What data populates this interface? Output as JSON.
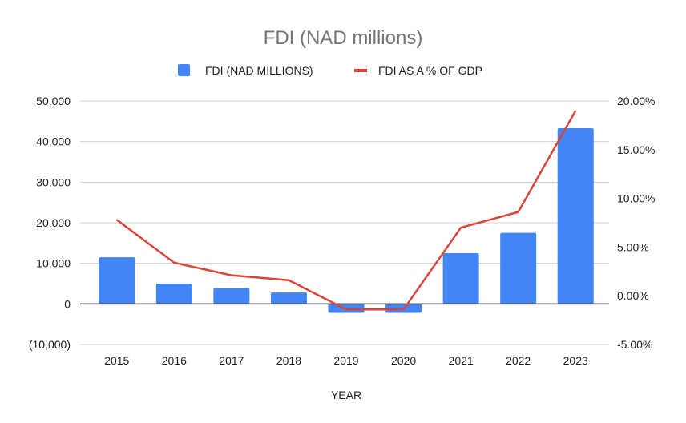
{
  "chart_data": {
    "type": "bar",
    "title": "FDI (NAD millions)",
    "xlabel": "YEAR",
    "categories": [
      "2015",
      "2016",
      "2017",
      "2018",
      "2019",
      "2020",
      "2021",
      "2022",
      "2023"
    ],
    "series": [
      {
        "name": "FDI (NAD MILLIONS)",
        "type": "bar",
        "axis": "left",
        "color": "#4285f4",
        "values": [
          11500,
          5000,
          3900,
          2800,
          -2200,
          -2200,
          12500,
          17500,
          43300
        ]
      },
      {
        "name": "FDI AS A % OF GDP",
        "type": "line",
        "axis": "right",
        "color": "#db4437",
        "values": [
          7.8,
          3.4,
          2.1,
          1.6,
          -1.4,
          -1.4,
          7.0,
          8.6,
          19.0
        ]
      }
    ],
    "left_axis": {
      "min": -10000,
      "max": 50000,
      "ticks": [
        -10000,
        0,
        10000,
        20000,
        30000,
        40000,
        50000
      ],
      "tick_labels": [
        "(10,000)",
        "0",
        "10,000",
        "20,000",
        "30,000",
        "40,000",
        "50,000"
      ]
    },
    "right_axis": {
      "min": -5,
      "max": 20,
      "ticks": [
        -5,
        0,
        5,
        10,
        15,
        20
      ],
      "tick_labels": [
        "-5.00%",
        "0.00%",
        "5.00%",
        "10.00%",
        "15.00%",
        "20.00%"
      ]
    },
    "grid": true,
    "legend_placement": "top"
  }
}
